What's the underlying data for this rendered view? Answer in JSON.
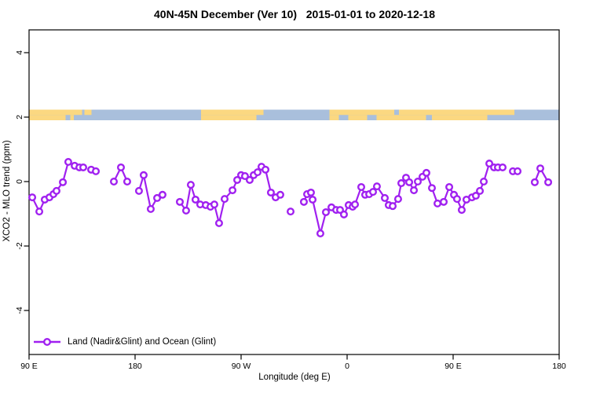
{
  "title": "40N-45N December (Ver 10)   2015-01-01 to 2020-12-18",
  "axes": {
    "x": {
      "label": "Longitude (deg E)",
      "range": [
        90,
        540
      ],
      "note": "axis wraps eastward: 90E to 180 to 90W to 0 to 90E to 180",
      "ticks": [
        {
          "value": 90,
          "label": "90 E"
        },
        {
          "value": 180,
          "label": "180"
        },
        {
          "value": 270,
          "label": "90 W"
        },
        {
          "value": 360,
          "label": "0"
        },
        {
          "value": 450,
          "label": "90 E"
        },
        {
          "value": 540,
          "label": "180"
        }
      ]
    },
    "y": {
      "label": "XCO2 - MLO trend (ppm)",
      "range": [
        -5,
        5
      ],
      "ticks": [
        {
          "value": 4,
          "label": "4"
        },
        {
          "value": 2,
          "label": "2"
        },
        {
          "value": 0,
          "label": "0"
        },
        {
          "value": -2,
          "label": "-2"
        },
        {
          "value": -4,
          "label": "-4"
        }
      ]
    }
  },
  "legend": {
    "label": "Land (Nadir&Glint) and Ocean (Glint)"
  },
  "colors": {
    "series": "#a020f0",
    "marker_fill": "#ffffff",
    "land": "#fbd881",
    "ocean": "#a9bfdc",
    "axis": "#000000",
    "background": "#ffffff"
  },
  "band": {
    "description": "land/ocean map strip drawn at y = 2 ppm",
    "y_value": 2,
    "ocean_base": [
      90,
      540
    ],
    "top_land": [
      [
        90,
        135
      ],
      [
        137,
        143
      ],
      [
        236,
        289
      ],
      [
        345,
        400
      ],
      [
        404,
        502
      ]
    ],
    "bottom_land": [
      [
        90,
        121
      ],
      [
        125,
        128
      ],
      [
        236,
        283
      ],
      [
        345,
        353
      ],
      [
        361,
        377
      ],
      [
        385,
        427
      ],
      [
        432,
        479
      ]
    ]
  },
  "chart_data": {
    "type": "line",
    "title": "40N-45N December (Ver 10)   2015-01-01 to 2020-12-18",
    "xlabel": "Longitude (deg E)",
    "ylabel": "XCO2 - MLO trend (ppm)",
    "xlim": [
      90,
      540
    ],
    "ylim": [
      -5,
      5
    ],
    "grid": false,
    "legend_position": "bottom-left",
    "marker": "open-circle",
    "series_name": "Land (Nadir&Glint) and Ocean (Glint)",
    "segments": [
      [
        [
          92.7,
          -0.49
        ],
        [
          98.7,
          -0.93
        ],
        [
          103.3,
          -0.56
        ],
        [
          107.3,
          -0.49
        ],
        [
          110.7,
          -0.39
        ],
        [
          113.3,
          -0.29
        ],
        [
          118.7,
          -0.02
        ],
        [
          123.3,
          0.61
        ],
        [
          128.7,
          0.49
        ],
        [
          132.7,
          0.44
        ],
        [
          136.0,
          0.44
        ]
      ],
      [
        [
          142.7,
          0.37
        ],
        [
          146.7,
          0.32
        ]
      ],
      [
        [
          162.0,
          0.0
        ],
        [
          168.0,
          0.44
        ],
        [
          173.3,
          0.0
        ]
      ],
      [
        [
          183.3,
          -0.29
        ],
        [
          187.3,
          0.2
        ],
        [
          193.3,
          -0.85
        ],
        [
          198.7,
          -0.51
        ],
        [
          203.3,
          -0.41
        ]
      ],
      [
        [
          218.0,
          -0.63
        ],
        [
          223.3,
          -0.9
        ],
        [
          227.3,
          -0.1
        ],
        [
          231.3,
          -0.56
        ],
        [
          235.3,
          -0.71
        ],
        [
          240.0,
          -0.73
        ],
        [
          244.0,
          -0.78
        ],
        [
          247.3,
          -0.71
        ],
        [
          251.3,
          -1.29
        ],
        [
          256.0,
          -0.54
        ],
        [
          262.7,
          -0.27
        ],
        [
          266.7,
          0.05
        ],
        [
          270.0,
          0.2
        ],
        [
          273.3,
          0.17
        ],
        [
          277.3,
          0.05
        ],
        [
          280.7,
          0.2
        ],
        [
          284.0,
          0.29
        ],
        [
          287.3,
          0.46
        ],
        [
          290.7,
          0.37
        ],
        [
          295.3,
          -0.34
        ],
        [
          299.3,
          -0.49
        ],
        [
          303.3,
          -0.41
        ]
      ],
      [
        [
          312.0,
          -0.93
        ]
      ],
      [
        [
          323.3,
          -0.63
        ],
        [
          326.0,
          -0.39
        ],
        [
          329.3,
          -0.34
        ],
        [
          330.7,
          -0.56
        ],
        [
          337.3,
          -1.61
        ],
        [
          342.0,
          -0.95
        ],
        [
          346.7,
          -0.8
        ],
        [
          350.7,
          -0.88
        ],
        [
          354.0,
          -0.88
        ],
        [
          357.3,
          -1.02
        ],
        [
          361.3,
          -0.73
        ],
        [
          364.7,
          -0.78
        ],
        [
          366.7,
          -0.71
        ],
        [
          372.0,
          -0.17
        ],
        [
          375.3,
          -0.41
        ],
        [
          378.7,
          -0.39
        ],
        [
          382.0,
          -0.32
        ],
        [
          385.3,
          -0.15
        ],
        [
          392.0,
          -0.51
        ],
        [
          395.3,
          -0.73
        ],
        [
          398.7,
          -0.76
        ],
        [
          403.3,
          -0.54
        ],
        [
          406.0,
          -0.05
        ],
        [
          410.0,
          0.12
        ],
        [
          412.7,
          -0.02
        ],
        [
          416.7,
          -0.27
        ],
        [
          420.0,
          0.0
        ],
        [
          424.0,
          0.15
        ],
        [
          427.3,
          0.27
        ],
        [
          432.0,
          -0.2
        ],
        [
          436.7,
          -0.68
        ],
        [
          442.0,
          -0.63
        ],
        [
          446.7,
          -0.17
        ],
        [
          450.7,
          -0.41
        ],
        [
          453.3,
          -0.54
        ],
        [
          457.3,
          -0.88
        ],
        [
          461.3,
          -0.56
        ],
        [
          466.0,
          -0.49
        ],
        [
          469.3,
          -0.44
        ],
        [
          472.7,
          -0.29
        ],
        [
          476.0,
          0.0
        ],
        [
          480.7,
          0.56
        ],
        [
          484.7,
          0.44
        ],
        [
          488.0,
          0.44
        ],
        [
          492.0,
          0.44
        ]
      ],
      [
        [
          500.7,
          0.32
        ],
        [
          504.7,
          0.32
        ]
      ],
      [
        [
          519.3,
          -0.02
        ],
        [
          524.0,
          0.41
        ],
        [
          530.7,
          -0.02
        ]
      ]
    ]
  }
}
